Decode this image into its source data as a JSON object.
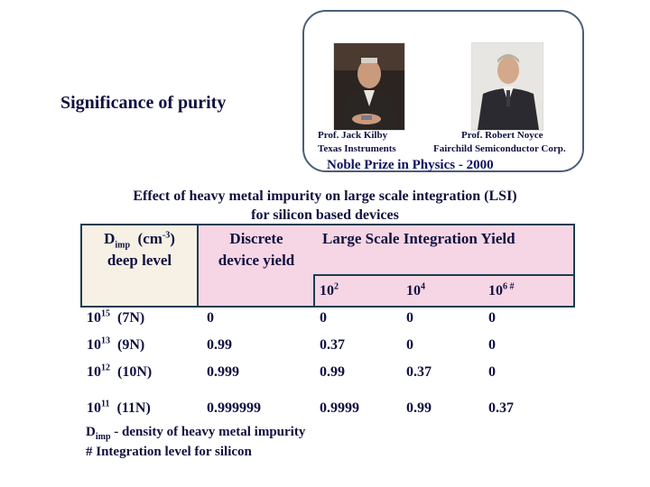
{
  "heading": "Significance of purity",
  "photos": [
    {
      "name": "Prof. Jack  Kilby",
      "org": "Texas Instruments"
    },
    {
      "name": "Prof. Robert Noyce",
      "org": "Fairchild Semiconductor Corp."
    }
  ],
  "award": "Noble Prize in Physics - 2000",
  "subtitle": {
    "line1": "Effect of heavy metal impurity on large scale integration (LSI)",
    "line2": "for silicon based devices"
  },
  "table": {
    "header": {
      "col1_line1_base": "D",
      "col1_line1_sub": "imp",
      "col1_line1_unit": "(cm",
      "col1_line1_sup": "-3",
      "col1_line1_close": ")",
      "col1_line2": "deep level",
      "col2_line1": "Discrete",
      "col2_line2": "device yield",
      "col3": "Large Scale Integration Yield"
    },
    "levels": [
      {
        "base": "10",
        "exp": "2",
        "mark": ""
      },
      {
        "base": "10",
        "exp": "4",
        "mark": ""
      },
      {
        "base": "10",
        "exp": "6",
        "mark": " #"
      }
    ],
    "rows": [
      {
        "conc_base": "10",
        "conc_exp": "15",
        "purity": "(7N)",
        "discrete": "0",
        "v1": "0",
        "v2": "0",
        "v3": "0"
      },
      {
        "conc_base": "10",
        "conc_exp": "13",
        "purity": "(9N)",
        "discrete": "0.99",
        "v1": "0.37",
        "v2": "0",
        "v3": "0"
      },
      {
        "conc_base": "10",
        "conc_exp": "12",
        "purity": "(10N)",
        "discrete": "0.999",
        "v1": "0.99",
        "v2": "0.37",
        "v3": "0"
      },
      {
        "conc_base": "10",
        "conc_exp": "11",
        "purity": "(11N)",
        "discrete": "0.999999",
        "v1": "0.9999",
        "v2": "0.99",
        "v3": "0.37"
      }
    ]
  },
  "footnotes": {
    "line1_base": "D",
    "line1_sub": "imp",
    "line1_text": " - density of heavy metal impurity",
    "line2": "# Integration level for silicon"
  }
}
